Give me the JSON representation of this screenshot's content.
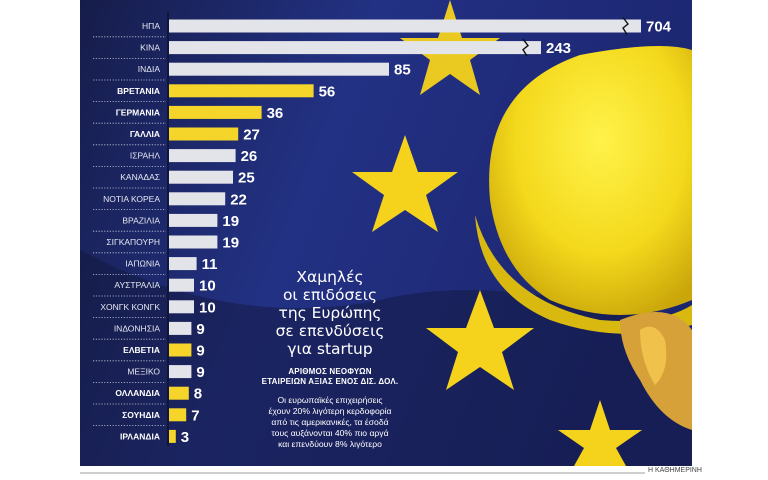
{
  "chart_data": {
    "type": "bar",
    "orientation": "horizontal",
    "title": "Χαμηλές οι επιδόσεις της Ευρώπης σε επενδύσεις για startup",
    "title_lines": [
      "Χαμηλές",
      "οι επιδόσεις",
      "της Ευρώπης",
      "σε επενδύσεις",
      "για startup"
    ],
    "subtitle_lines": [
      "ΑΡΙΘΜΟΣ ΝΕΟΦΥΩΝ",
      "ΕΤΑΙΡΕΙΩΝ ΑΞΙΑΣ ΕΝΟΣ ΔΙΣ. ΔΟΛ."
    ],
    "note_lines": [
      "Οι ευρωπαϊκές επιχειρήσεις",
      "έχουν 20% λιγότερη κερδοφορία",
      "από τις αμερικανικές, τα έσοδά",
      "τους αυξάνονται 40% πιο αργά",
      "και επενδύουν 8% λιγότερο"
    ],
    "categories": [
      "ΗΠΑ",
      "ΚΙΝΑ",
      "ΙΝΔΙΑ",
      "ΒΡΕΤΑΝΙΑ",
      "ΓΕΡΜΑΝΙΑ",
      "ΓΑΛΛΙΑ",
      "ΙΣΡΑΗΛ",
      "ΚΑΝΑΔΑΣ",
      "ΝΟΤΙΑ ΚΟΡΕΑ",
      "ΒΡΑΖΙΛΙΑ",
      "ΣΙΓΚΑΠΟΥΡΗ",
      "ΙΑΠΩΝΙΑ",
      "ΑΥΣΤΡΑΛΙΑ",
      "ΧΟΝΓΚ ΚΟΝΓΚ",
      "ΙΝΔΟΝΗΣΙΑ",
      "ΕΛΒΕΤΙΑ",
      "ΜΕΞΙΚΟ",
      "ΟΛΛΑΝΔΙΑ",
      "ΣΟΥΗΔΙΑ",
      "ΙΡΛΑΝΔΙΑ"
    ],
    "values": [
      704,
      243,
      85,
      56,
      36,
      27,
      26,
      25,
      22,
      19,
      19,
      11,
      10,
      10,
      9,
      9,
      9,
      8,
      7,
      3
    ],
    "highlighted_europe": [
      false,
      false,
      false,
      true,
      true,
      true,
      false,
      false,
      false,
      false,
      false,
      false,
      false,
      false,
      false,
      true,
      false,
      true,
      true,
      true
    ],
    "axis_break": [
      true,
      true,
      false,
      false,
      false,
      false,
      false,
      false,
      false,
      false,
      false,
      false,
      false,
      false,
      false,
      false,
      false,
      false,
      false,
      false
    ],
    "colors": {
      "default_bar": "#e3e4ea",
      "europe_bar": "#f6d52a",
      "background": "#1e2a6b",
      "stars": "#f5d31c"
    }
  },
  "footer": {
    "credit": "Η ΚΑΘΗΜΕΡΙΝΗ"
  }
}
